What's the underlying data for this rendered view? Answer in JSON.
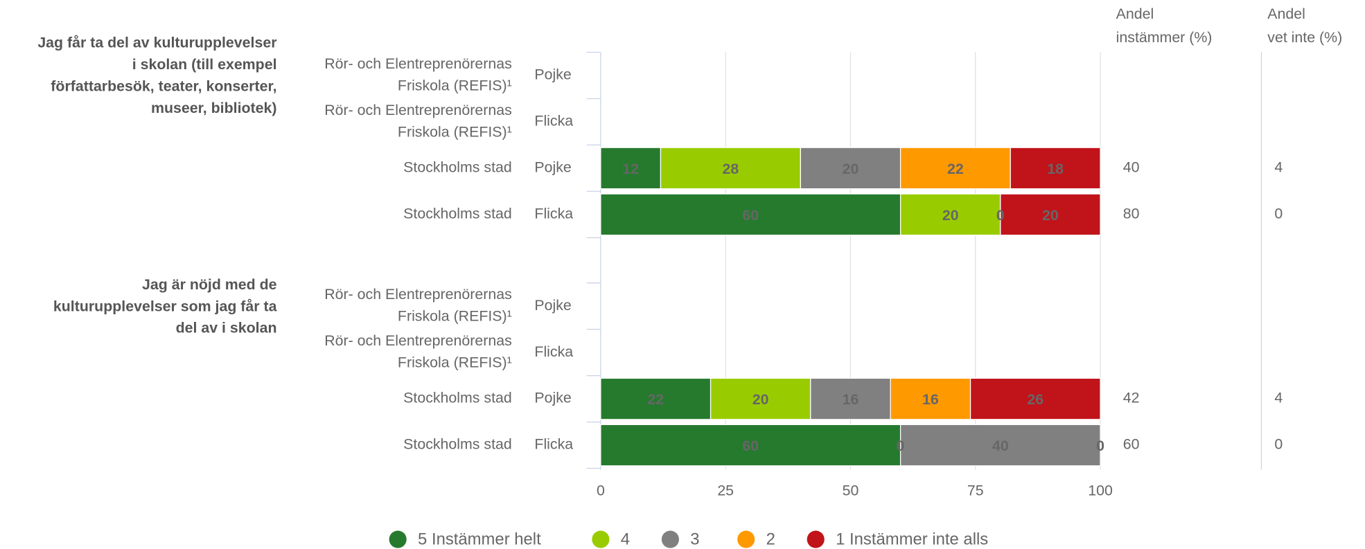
{
  "chart_data": {
    "type": "stacked-bar-h",
    "groups": [
      {
        "label": [
          "Jag får ta del av kulturupplevelser",
          "i skolan (till exempel",
          "författarbesök, teater, konserter,",
          "museer, bibliotek)"
        ],
        "rows": [
          {
            "school": [
              "Rör- och Elentreprenörernas",
              "Friskola (REFIS)¹"
            ],
            "gender": "Pojke"
          },
          {
            "school": [
              "Rör- och Elentreprenörernas",
              "Friskola (REFIS)¹"
            ],
            "gender": "Flicka"
          },
          {
            "school": [
              "Stockholms stad"
            ],
            "gender": "Pojke"
          },
          {
            "school": [
              "Stockholms stad"
            ],
            "gender": "Flicka"
          }
        ]
      },
      {
        "label": [
          "Jag är nöjd med de",
          "kulturupplevelser som jag får ta",
          "del av i skolan"
        ],
        "rows": [
          {
            "school": [
              "Rör- och Elentreprenörernas",
              "Friskola (REFIS)¹"
            ],
            "gender": "Pojke"
          },
          {
            "school": [
              "Rör- och Elentreprenörernas",
              "Friskola (REFIS)¹"
            ],
            "gender": "Flicka"
          },
          {
            "school": [
              "Stockholms stad"
            ],
            "gender": "Pojke"
          },
          {
            "school": [
              "Stockholms stad"
            ],
            "gender": "Flicka"
          }
        ]
      }
    ],
    "series": [
      {
        "name": "5 Instämmer helt",
        "color": "#267a2e",
        "label_color": "#ffffff",
        "values": [
          null,
          null,
          12,
          60,
          null,
          null,
          22,
          60
        ]
      },
      {
        "name": "4",
        "color": "#99cc00",
        "label_color": "#111111",
        "values": [
          null,
          null,
          28,
          20,
          null,
          null,
          20,
          0
        ]
      },
      {
        "name": "3",
        "color": "#808080",
        "label_color": "#111111",
        "values": [
          null,
          null,
          20,
          0,
          null,
          null,
          16,
          40
        ]
      },
      {
        "name": "2",
        "color": "#ff9900",
        "label_color": "#111111",
        "values": [
          null,
          null,
          22,
          null,
          null,
          null,
          16,
          0
        ]
      },
      {
        "name": "1 Instämmer inte alls",
        "color": "#c0141a",
        "label_color": "#ffffff",
        "values": [
          null,
          null,
          18,
          20,
          null,
          null,
          26,
          null
        ]
      }
    ],
    "columns": [
      {
        "header": [
          "Andel",
          "instämmer (%)"
        ],
        "values": [
          null,
          null,
          40,
          80,
          null,
          null,
          42,
          60
        ]
      },
      {
        "header": [
          "Andel",
          "vet inte (%)"
        ],
        "values": [
          null,
          null,
          4,
          0,
          null,
          null,
          4,
          0
        ]
      }
    ],
    "xlim": [
      0,
      100
    ],
    "xticks": [
      0,
      25,
      50,
      75,
      100
    ],
    "grid": true,
    "legend": "bottom"
  }
}
